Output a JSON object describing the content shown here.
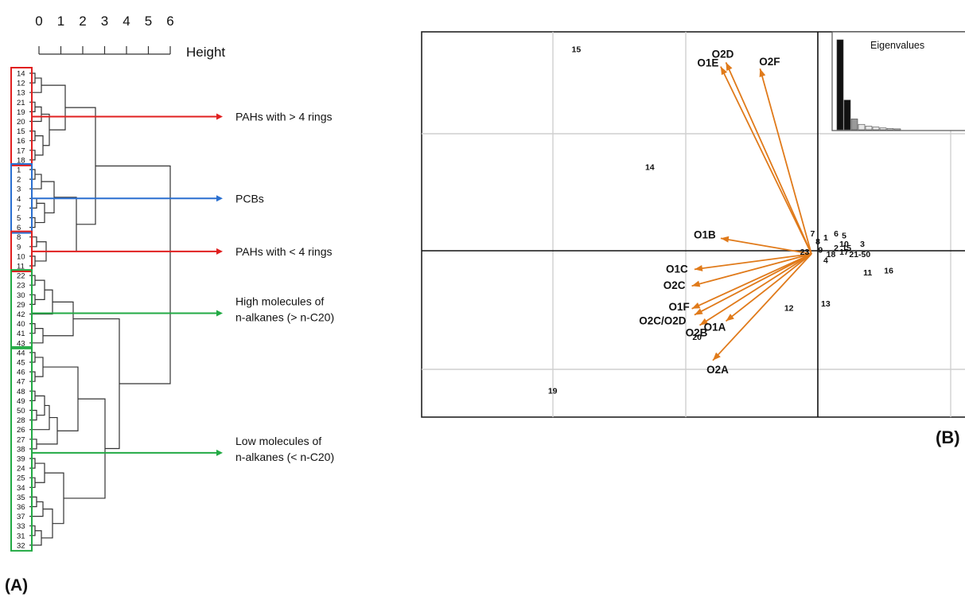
{
  "panel_a": {
    "label": "(A)",
    "height_axis": {
      "label": "Height",
      "ticks": [
        "0",
        "1",
        "2",
        "3",
        "4",
        "5",
        "6"
      ]
    },
    "leaves": [
      "14",
      "12",
      "13",
      "21",
      "19",
      "20",
      "15",
      "16",
      "17",
      "18",
      "1",
      "2",
      "3",
      "4",
      "7",
      "5",
      "6",
      "8",
      "9",
      "10",
      "11",
      "22",
      "23",
      "30",
      "29",
      "42",
      "40",
      "41",
      "43",
      "44",
      "45",
      "46",
      "47",
      "48",
      "49",
      "50",
      "28",
      "26",
      "27",
      "38",
      "39",
      "24",
      "25",
      "34",
      "35",
      "36",
      "37",
      "33",
      "31",
      "32"
    ],
    "groups": [
      {
        "label_lines": [
          "PAHs with > 4 rings"
        ],
        "color": "#e02020",
        "first": 0,
        "last": 9
      },
      {
        "label_lines": [
          "PCBs"
        ],
        "color": "#2a6fd0",
        "first": 10,
        "last": 16
      },
      {
        "label_lines": [
          "PAHs with < 4 rings"
        ],
        "color": "#e02020",
        "first": 17,
        "last": 20
      },
      {
        "label_lines": [
          "High molecules of",
          "n-alkanes (> n-C20)"
        ],
        "color": "#22aa44",
        "first": 21,
        "last": 28
      },
      {
        "label_lines": [
          "Low molecules of",
          "n-alkanes (< n-C20)"
        ],
        "color": "#22aa44",
        "first": 29,
        "last": 49
      }
    ]
  },
  "panel_b": {
    "label": "(B)",
    "inset_title": "Eigenvalues",
    "inset_bars": [
      1.0,
      0.33,
      0.12,
      0.06,
      0.04,
      0.03,
      0.02,
      0.015,
      0.01
    ],
    "arrow_color": "#e07a1a",
    "vectors": [
      {
        "name": "O2D",
        "x": -0.35,
        "y": 0.91
      },
      {
        "name": "O2F",
        "x": -0.22,
        "y": 0.88
      },
      {
        "name": "O1E",
        "x": -0.37,
        "y": 0.89
      },
      {
        "name": "O1B",
        "x": -0.37,
        "y": 0.06
      },
      {
        "name": "O1C",
        "x": -0.47,
        "y": -0.09
      },
      {
        "name": "O2C",
        "x": -0.48,
        "y": -0.17
      },
      {
        "name": "O1F",
        "x": -0.48,
        "y": -0.28
      },
      {
        "name": "O2C/O2D",
        "x": -0.47,
        "y": -0.31
      },
      {
        "name": "O2B",
        "x": -0.45,
        "y": -0.36
      },
      {
        "name": "O1A",
        "x": -0.35,
        "y": -0.34
      },
      {
        "name": "O2A",
        "x": -0.4,
        "y": -0.53
      }
    ],
    "points": [
      {
        "label": "15",
        "x": -0.92,
        "y": 0.96
      },
      {
        "label": "14",
        "x": -0.64,
        "y": 0.39
      },
      {
        "label": "19",
        "x": -1.01,
        "y": -0.69
      },
      {
        "label": "20",
        "x": -0.46,
        "y": -0.43
      },
      {
        "label": "12",
        "x": -0.11,
        "y": -0.29
      },
      {
        "label": "13",
        "x": 0.03,
        "y": -0.27
      },
      {
        "label": "7",
        "x": -0.02,
        "y": 0.07
      },
      {
        "label": "1",
        "x": 0.03,
        "y": 0.05
      },
      {
        "label": "6",
        "x": 0.07,
        "y": 0.07
      },
      {
        "label": "5",
        "x": 0.1,
        "y": 0.06
      },
      {
        "label": "8",
        "x": 0.0,
        "y": 0.03
      },
      {
        "label": "10",
        "x": 0.1,
        "y": 0.02
      },
      {
        "label": "3",
        "x": 0.17,
        "y": 0.02
      },
      {
        "label": "2",
        "x": 0.07,
        "y": 0.0
      },
      {
        "label": "23",
        "x": -0.05,
        "y": -0.02
      },
      {
        "label": "9",
        "x": 0.01,
        "y": -0.01
      },
      {
        "label": "15",
        "x": 0.11,
        "y": 0.0
      },
      {
        "label": "18",
        "x": 0.05,
        "y": -0.03
      },
      {
        "label": "17",
        "x": 0.1,
        "y": -0.02
      },
      {
        "label": "21-50",
        "x": 0.16,
        "y": -0.03
      },
      {
        "label": "4",
        "x": 0.03,
        "y": -0.06
      },
      {
        "label": "11",
        "x": 0.19,
        "y": -0.12
      },
      {
        "label": "16",
        "x": 0.27,
        "y": -0.11
      }
    ]
  }
}
